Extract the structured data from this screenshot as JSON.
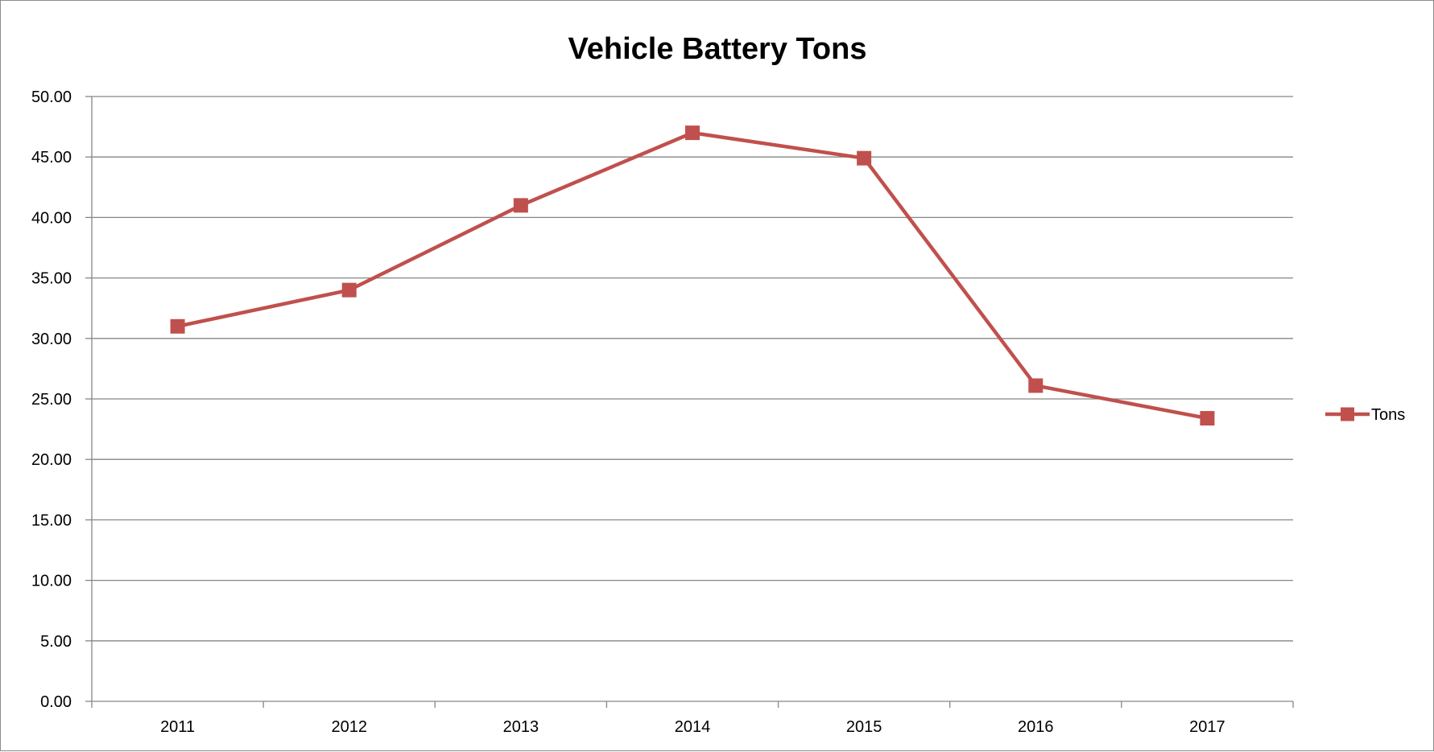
{
  "chart_data": {
    "type": "line",
    "title": "Vehicle Battery Tons",
    "xlabel": "",
    "ylabel": "",
    "categories": [
      "2011",
      "2012",
      "2013",
      "2014",
      "2015",
      "2016",
      "2017"
    ],
    "series": [
      {
        "name": "Tons",
        "values": [
          31.0,
          34.0,
          41.0,
          47.0,
          44.9,
          26.1,
          23.4
        ],
        "color": "#c0504d",
        "marker": "square"
      }
    ],
    "ylim": [
      0,
      50
    ],
    "yticks": [
      "0.00",
      "5.00",
      "10.00",
      "15.00",
      "20.00",
      "25.00",
      "30.00",
      "35.00",
      "40.00",
      "45.00",
      "50.00"
    ],
    "grid": "horizontal",
    "legend": "right",
    "gridline_color": "#868686",
    "axis_color": "#868686"
  }
}
